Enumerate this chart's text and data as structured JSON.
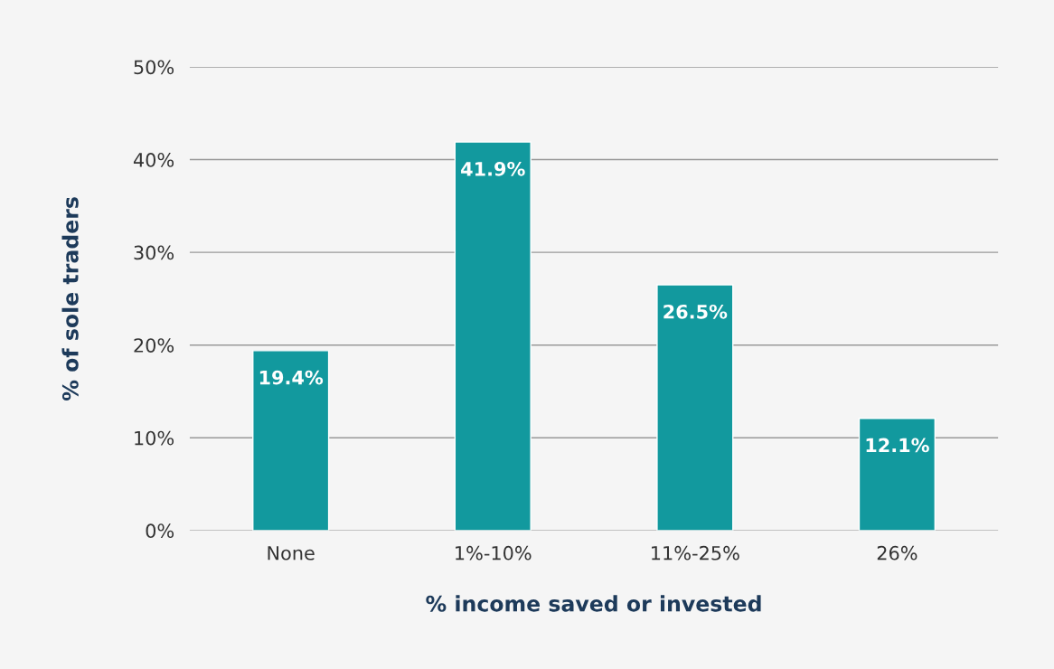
{
  "chart_data": {
    "type": "bar",
    "xlabel": "% income saved or invested",
    "ylabel": "% of sole traders",
    "categories": [
      "None",
      "1%-10%",
      "11%-25%",
      "26%"
    ],
    "values": [
      19.4,
      41.9,
      26.5,
      12.1
    ],
    "color": "#12999e",
    "value_labels": [
      "19.4%",
      "41.9%",
      "26.5%",
      "12.1%"
    ],
    "ylim": [
      0,
      50
    ],
    "yticks": [
      {
        "value": 0,
        "label": "0%"
      },
      {
        "value": 10,
        "label": "10%"
      },
      {
        "value": 20,
        "label": "20%"
      },
      {
        "value": 30,
        "label": "30%"
      },
      {
        "value": 40,
        "label": "40%"
      },
      {
        "value": 50,
        "label": "50%"
      }
    ],
    "grid": "y",
    "legend": false
  }
}
